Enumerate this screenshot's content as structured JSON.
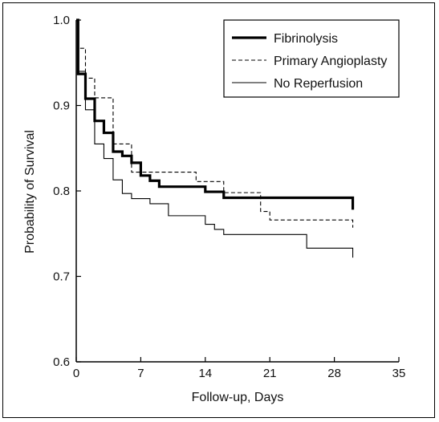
{
  "chart_data": {
    "type": "line",
    "title": "",
    "xlabel": "Follow-up, Days",
    "ylabel": "Probability of Survival",
    "xlim": [
      0,
      35
    ],
    "ylim": [
      0.6,
      1.0
    ],
    "x_ticks": [
      0,
      7,
      14,
      21,
      28,
      35
    ],
    "y_ticks": [
      0.6,
      0.7,
      0.8,
      0.9,
      1.0
    ],
    "x_tick_labels": [
      "0",
      "7",
      "14",
      "21",
      "28",
      "35"
    ],
    "y_tick_labels": [
      "0.6",
      "0.7",
      "0.8",
      "0.9",
      "1.0"
    ],
    "grid": false,
    "legend_position": "top-right",
    "step": true,
    "series": [
      {
        "name": "Fibrinolysis",
        "style": "thick-solid",
        "x": [
          0,
          0.2,
          1,
          2,
          3,
          4,
          5,
          6,
          7,
          8,
          9,
          14,
          16,
          30,
          30
        ],
        "y": [
          1.0,
          0.937,
          0.908,
          0.882,
          0.868,
          0.846,
          0.841,
          0.833,
          0.818,
          0.812,
          0.805,
          0.799,
          0.792,
          0.792,
          0.778
        ]
      },
      {
        "name": "Primary Angioplasty",
        "style": "dashed",
        "x": [
          0,
          0.2,
          1,
          2,
          4,
          6,
          7,
          13,
          16,
          20,
          21,
          30,
          30
        ],
        "y": [
          1.0,
          0.967,
          0.932,
          0.909,
          0.855,
          0.822,
          0.822,
          0.811,
          0.798,
          0.776,
          0.766,
          0.766,
          0.757
        ]
      },
      {
        "name": "No Reperfusion",
        "style": "thin-solid",
        "x": [
          0,
          0.2,
          1,
          2,
          3,
          4,
          5,
          6,
          8,
          10,
          14,
          15,
          16,
          25,
          30
        ],
        "y": [
          1.0,
          0.94,
          0.895,
          0.855,
          0.838,
          0.813,
          0.797,
          0.791,
          0.785,
          0.771,
          0.761,
          0.755,
          0.749,
          0.733,
          0.722
        ]
      }
    ]
  }
}
